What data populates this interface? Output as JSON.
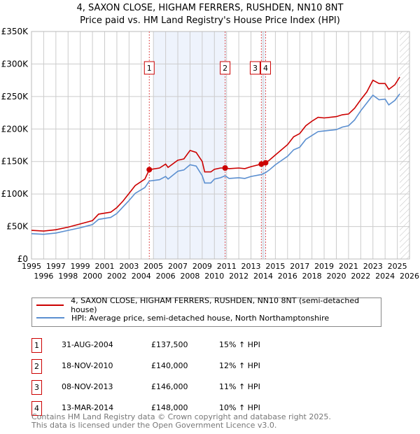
{
  "title": "4, SAXON CLOSE, HIGHAM FERRERS, RUSHDEN, NN10 8NT",
  "subtitle": "Price paid vs. HM Land Registry's House Price Index (HPI)",
  "chart_data": {
    "type": "line",
    "xlim": [
      1995,
      2026
    ],
    "ylim": [
      0,
      350000
    ],
    "yticks": [
      0,
      50000,
      100000,
      150000,
      200000,
      250000,
      300000,
      350000
    ],
    "ytick_labels": [
      "£0",
      "£50K",
      "£100K",
      "£150K",
      "£200K",
      "£250K",
      "£300K",
      "£350K"
    ],
    "xticks": [
      1995,
      1996,
      1997,
      1998,
      1999,
      2000,
      2001,
      2002,
      2003,
      2004,
      2005,
      2006,
      2007,
      2008,
      2009,
      2010,
      2011,
      2012,
      2013,
      2014,
      2015,
      2016,
      2017,
      2018,
      2019,
      2020,
      2021,
      2022,
      2023,
      2024,
      2025,
      2026
    ],
    "shaded_ranges": [
      [
        2005,
        2011
      ],
      [
        2013.85,
        2014.2
      ]
    ],
    "future_hatch_from": 2025.2,
    "colors": {
      "property": "#cc0000",
      "hpi": "#5b8fd0"
    },
    "x": [
      1995,
      1996,
      1997,
      1998,
      1999,
      2000,
      2000.5,
      2001.5,
      2002,
      2002.5,
      2003,
      2003.5,
      2004.3,
      2004.66,
      2005.5,
      2006,
      2006.2,
      2007,
      2007.5,
      2008,
      2008.5,
      2009,
      2009.2,
      2009.7,
      2010,
      2010.5,
      2010.88,
      2011.2,
      2012,
      2012.5,
      2013,
      2013.85,
      2014.2,
      2014.5,
      2015,
      2016,
      2016.5,
      2017,
      2017.5,
      2018,
      2018.5,
      2019,
      2020,
      2020.5,
      2021,
      2021.5,
      2022,
      2022.5,
      2023,
      2023.5,
      2024,
      2024.3,
      2024.8,
      2025.2
    ],
    "series": [
      {
        "name": "4, SAXON CLOSE, HIGHAM FERRERS, RUSHDEN, NN10 8NT (semi-detached house)",
        "values": [
          44000,
          43000,
          45000,
          49000,
          54000,
          59000,
          69000,
          72000,
          79000,
          89000,
          101000,
          113000,
          123000,
          137500,
          140000,
          146000,
          141000,
          152000,
          154000,
          167000,
          164000,
          150000,
          134000,
          134000,
          138000,
          140000,
          140000,
          139000,
          140000,
          139000,
          142000,
          146000,
          148000,
          152000,
          160000,
          176000,
          188000,
          193000,
          205000,
          212000,
          218000,
          217000,
          219000,
          222000,
          223000,
          232000,
          245000,
          257000,
          275000,
          270000,
          270000,
          261000,
          268000,
          280000
        ]
      },
      {
        "name": "HPI: Average price, semi-detached house, North Northamptonshire",
        "values": [
          39000,
          38000,
          40000,
          44000,
          48000,
          53000,
          61000,
          64000,
          70000,
          80000,
          90000,
          101000,
          110000,
          120000,
          122000,
          127000,
          123000,
          135000,
          137000,
          145000,
          143000,
          128000,
          117000,
          117000,
          123000,
          125000,
          128000,
          124000,
          125000,
          124000,
          127000,
          130000,
          133000,
          137000,
          145000,
          158000,
          168000,
          172000,
          184000,
          190000,
          196000,
          197000,
          199000,
          203000,
          205000,
          214000,
          228000,
          240000,
          252000,
          245000,
          246000,
          237000,
          244000,
          254000
        ]
      }
    ],
    "sales": [
      {
        "label": "1",
        "x": 2004.66,
        "price": 137500
      },
      {
        "label": "2",
        "x": 2010.88,
        "price": 140000
      },
      {
        "label": "3",
        "x": 2013.85,
        "price": 146000
      },
      {
        "label": "4",
        "x": 2014.2,
        "price": 148000
      }
    ]
  },
  "legend": {
    "property": "4, SAXON CLOSE, HIGHAM FERRERS, RUSHDEN, NN10 8NT (semi-detached house)",
    "hpi": "HPI: Average price, semi-detached house, North Northamptonshire"
  },
  "transactions": [
    {
      "num": "1",
      "date": "31-AUG-2004",
      "price": "£137,500",
      "hpi": "15% ↑ HPI"
    },
    {
      "num": "2",
      "date": "18-NOV-2010",
      "price": "£140,000",
      "hpi": "12% ↑ HPI"
    },
    {
      "num": "3",
      "date": "08-NOV-2013",
      "price": "£146,000",
      "hpi": "11% ↑ HPI"
    },
    {
      "num": "4",
      "date": "13-MAR-2014",
      "price": "£148,000",
      "hpi": "10% ↑ HPI"
    }
  ],
  "footer": {
    "line1": "Contains HM Land Registry data © Crown copyright and database right 2025.",
    "line2": "This data is licensed under the Open Government Licence v3.0."
  }
}
